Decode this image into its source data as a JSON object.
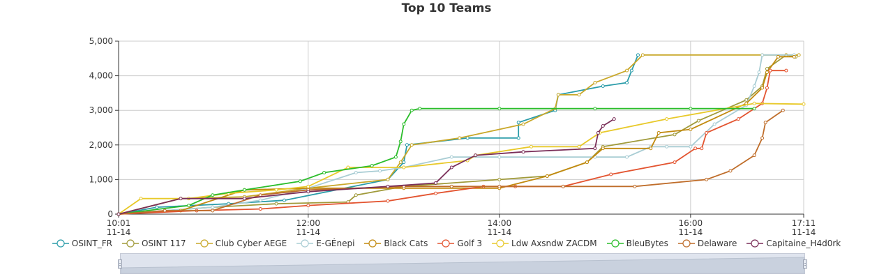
{
  "chart_data": {
    "type": "line",
    "title": "Top 10 Teams",
    "xlabel": "",
    "ylabel": "",
    "x_range": [
      "2024-11-14 10:01",
      "2024-11-14 17:11"
    ],
    "ylim": [
      0,
      5000
    ],
    "y_ticks": [
      0,
      1000,
      2000,
      3000,
      4000,
      5000
    ],
    "y_tick_labels": [
      "0",
      "1,000",
      "2,000",
      "3,000",
      "4,000",
      "5,000"
    ],
    "x_ticks": [
      {
        "time": "10:01",
        "label": "10:01",
        "date": "11-14"
      },
      {
        "time": "12:00",
        "label": "12:00",
        "date": "11-14"
      },
      {
        "time": "14:00",
        "label": "14:00",
        "date": "11-14"
      },
      {
        "time": "16:00",
        "label": "16:00",
        "date": "11-14"
      },
      {
        "time": "17:11",
        "label": "17:11",
        "date": "11-14"
      }
    ],
    "grid": true,
    "legend_position": "bottom",
    "series": [
      {
        "name": "OSINT_FR",
        "color": "#2a9ca9",
        "points": [
          [
            "10:01",
            0
          ],
          [
            "10:25",
            200
          ],
          [
            "11:10",
            300
          ],
          [
            "11:45",
            400
          ],
          [
            "12:50",
            1000
          ],
          [
            "13:00",
            1500
          ],
          [
            "13:02",
            2000
          ],
          [
            "13:40",
            2200
          ],
          [
            "14:12",
            2200
          ],
          [
            "14:12",
            2650
          ],
          [
            "14:35",
            3000
          ],
          [
            "14:37",
            3450
          ],
          [
            "15:05",
            3700
          ],
          [
            "15:20",
            3800
          ],
          [
            "15:23",
            4150
          ],
          [
            "15:27",
            4600
          ]
        ]
      },
      {
        "name": "OSINT 117",
        "color": "#a09a3a",
        "points": [
          [
            "10:01",
            0
          ],
          [
            "10:30",
            100
          ],
          [
            "11:00",
            200
          ],
          [
            "11:40",
            300
          ],
          [
            "12:25",
            350
          ],
          [
            "12:30",
            550
          ],
          [
            "13:00",
            800
          ],
          [
            "14:00",
            1000
          ],
          [
            "14:30",
            1100
          ],
          [
            "14:55",
            1500
          ],
          [
            "15:05",
            1950
          ],
          [
            "15:50",
            2300
          ],
          [
            "16:05",
            2700
          ],
          [
            "16:35",
            3300
          ],
          [
            "16:45",
            3700
          ],
          [
            "16:48",
            4200
          ],
          [
            "17:00",
            4600
          ],
          [
            "17:06",
            4550
          ]
        ]
      },
      {
        "name": "Club Cyber AEGE",
        "color": "#c9a82a",
        "points": [
          [
            "10:01",
            0
          ],
          [
            "10:40",
            450
          ],
          [
            "11:20",
            500
          ],
          [
            "12:00",
            750
          ],
          [
            "12:50",
            1000
          ],
          [
            "12:58",
            1500
          ],
          [
            "13:05",
            2000
          ],
          [
            "13:35",
            2200
          ],
          [
            "14:15",
            2600
          ],
          [
            "14:35",
            3050
          ],
          [
            "14:37",
            3450
          ],
          [
            "14:50",
            3450
          ],
          [
            "15:00",
            3800
          ],
          [
            "15:20",
            4150
          ],
          [
            "15:30",
            4600
          ],
          [
            "16:45",
            4600
          ],
          [
            "17:00",
            4600
          ],
          [
            "17:08",
            4600
          ]
        ]
      },
      {
        "name": "E-GÉnepi",
        "color": "#a9cdd4",
        "points": [
          [
            "10:01",
            0
          ],
          [
            "10:30",
            100
          ],
          [
            "11:00",
            200
          ],
          [
            "11:30",
            400
          ],
          [
            "12:00",
            750
          ],
          [
            "12:30",
            1200
          ],
          [
            "12:45",
            1250
          ],
          [
            "13:00",
            1350
          ],
          [
            "13:30",
            1650
          ],
          [
            "14:00",
            1650
          ],
          [
            "15:00",
            1650
          ],
          [
            "15:20",
            1650
          ],
          [
            "15:35",
            1950
          ],
          [
            "15:45",
            1950
          ],
          [
            "16:00",
            1950
          ],
          [
            "16:15",
            2600
          ],
          [
            "16:35",
            3150
          ],
          [
            "16:40",
            3700
          ],
          [
            "16:43",
            4100
          ],
          [
            "16:45",
            4600
          ],
          [
            "17:05",
            4600
          ]
        ]
      },
      {
        "name": "Black Cats",
        "color": "#c28a0f",
        "points": [
          [
            "10:01",
            0
          ],
          [
            "10:40",
            100
          ],
          [
            "11:20",
            700
          ],
          [
            "12:00",
            750
          ],
          [
            "13:00",
            750
          ],
          [
            "14:00",
            750
          ],
          [
            "14:30",
            1100
          ],
          [
            "14:55",
            1500
          ],
          [
            "15:05",
            1900
          ],
          [
            "15:35",
            1900
          ],
          [
            "15:40",
            2350
          ],
          [
            "16:00",
            2450
          ],
          [
            "16:35",
            3200
          ],
          [
            "16:45",
            3650
          ],
          [
            "16:48",
            4100
          ],
          [
            "16:55",
            4550
          ],
          [
            "17:05",
            4550
          ]
        ]
      },
      {
        "name": "Golf 3",
        "color": "#e35430",
        "points": [
          [
            "10:01",
            0
          ],
          [
            "10:50",
            100
          ],
          [
            "11:30",
            150
          ],
          [
            "12:00",
            250
          ],
          [
            "12:50",
            380
          ],
          [
            "13:20",
            600
          ],
          [
            "13:50",
            800
          ],
          [
            "14:10",
            800
          ],
          [
            "14:40",
            800
          ],
          [
            "15:10",
            1150
          ],
          [
            "15:50",
            1500
          ],
          [
            "16:03",
            1900
          ],
          [
            "16:07",
            1900
          ],
          [
            "16:10",
            2350
          ],
          [
            "16:30",
            2750
          ],
          [
            "16:45",
            3200
          ],
          [
            "16:48",
            3650
          ],
          [
            "16:50",
            4150
          ],
          [
            "17:00",
            4150
          ]
        ]
      },
      {
        "name": "Ldw Axsndw ZACDM",
        "color": "#e8c92a",
        "points": [
          [
            "10:01",
            0
          ],
          [
            "10:15",
            450
          ],
          [
            "10:45",
            450
          ],
          [
            "11:10",
            600
          ],
          [
            "11:40",
            700
          ],
          [
            "12:00",
            800
          ],
          [
            "12:25",
            1350
          ],
          [
            "13:00",
            1350
          ],
          [
            "13:40",
            1550
          ],
          [
            "13:45",
            1700
          ],
          [
            "14:20",
            1950
          ],
          [
            "14:50",
            1950
          ],
          [
            "15:03",
            2350
          ],
          [
            "15:45",
            2750
          ],
          [
            "16:40",
            3200
          ],
          [
            "17:11",
            3180
          ]
        ]
      },
      {
        "name": "BleuBytes",
        "color": "#2bbd2b",
        "points": [
          [
            "10:01",
            0
          ],
          [
            "10:45",
            250
          ],
          [
            "11:00",
            550
          ],
          [
            "11:20",
            700
          ],
          [
            "11:55",
            950
          ],
          [
            "12:10",
            1200
          ],
          [
            "12:40",
            1400
          ],
          [
            "12:55",
            1650
          ],
          [
            "12:58",
            2100
          ],
          [
            "13:00",
            2600
          ],
          [
            "13:05",
            3000
          ],
          [
            "13:10",
            3050
          ],
          [
            "14:00",
            3050
          ],
          [
            "15:00",
            3050
          ],
          [
            "16:00",
            3050
          ],
          [
            "16:40",
            3050
          ]
        ]
      },
      {
        "name": "Delaware",
        "color": "#bf6d2a",
        "points": [
          [
            "10:01",
            0
          ],
          [
            "10:30",
            100
          ],
          [
            "11:00",
            100
          ],
          [
            "11:30",
            550
          ],
          [
            "12:00",
            700
          ],
          [
            "13:00",
            800
          ],
          [
            "13:30",
            800
          ],
          [
            "14:00",
            800
          ],
          [
            "14:40",
            800
          ],
          [
            "15:25",
            800
          ],
          [
            "16:10",
            1000
          ],
          [
            "16:25",
            1250
          ],
          [
            "16:40",
            1700
          ],
          [
            "16:45",
            2200
          ],
          [
            "16:47",
            2650
          ],
          [
            "16:58",
            3000
          ]
        ]
      },
      {
        "name": "Capitaine_H4d0rk",
        "color": "#7a2e58",
        "points": [
          [
            "10:01",
            0
          ],
          [
            "10:40",
            450
          ],
          [
            "11:20",
            450
          ],
          [
            "12:00",
            650
          ],
          [
            "12:50",
            800
          ],
          [
            "13:20",
            900
          ],
          [
            "13:30",
            1350
          ],
          [
            "13:45",
            1700
          ],
          [
            "14:15",
            1800
          ],
          [
            "15:00",
            1900
          ],
          [
            "15:02",
            2350
          ],
          [
            "15:05",
            2550
          ],
          [
            "15:12",
            2750
          ]
        ]
      }
    ]
  },
  "zoom": {
    "label": "data-zoom"
  }
}
